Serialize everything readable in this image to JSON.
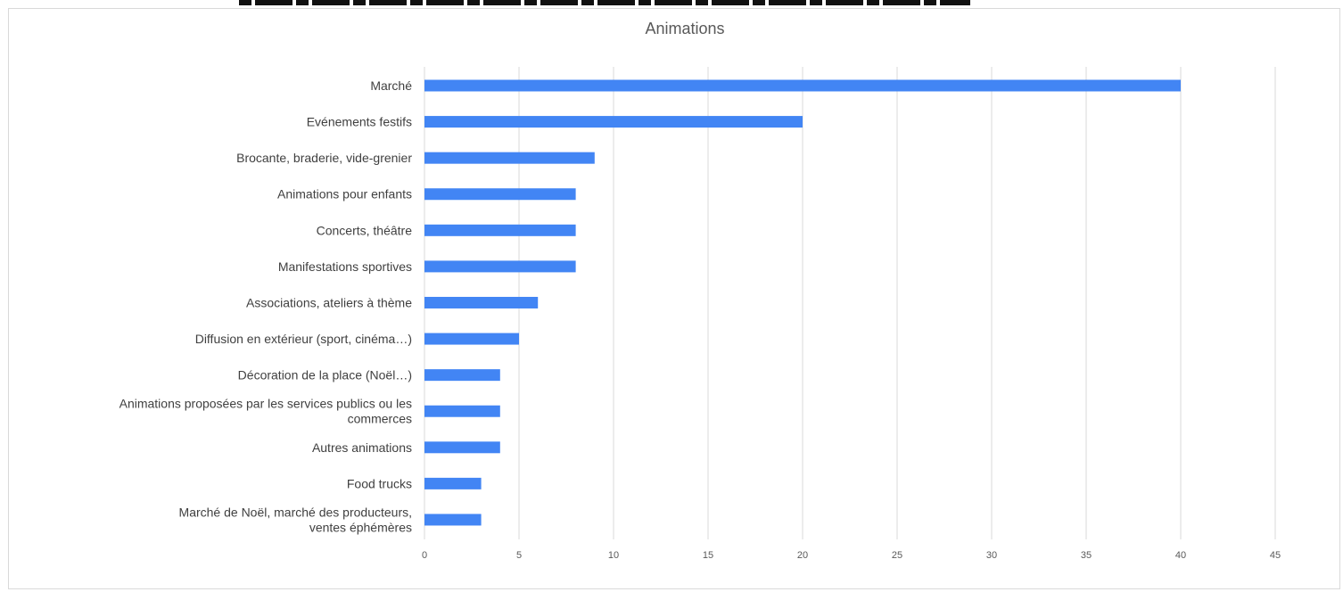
{
  "chart_data": {
    "type": "bar",
    "orientation": "horizontal",
    "title": "Animations",
    "xlabel": "",
    "ylabel": "",
    "xlim": [
      0,
      45
    ],
    "xticks": [
      0,
      5,
      10,
      15,
      20,
      25,
      30,
      35,
      40,
      45
    ],
    "grid": "vertical",
    "bar_color": "#4285f4",
    "categories": [
      [
        "Marché"
      ],
      [
        "Evénements festifs"
      ],
      [
        "Brocante, braderie, vide-grenier"
      ],
      [
        "Animations pour enfants"
      ],
      [
        "Concerts, théâtre"
      ],
      [
        "Manifestations sportives"
      ],
      [
        "Associations, ateliers à thème"
      ],
      [
        "Diffusion en extérieur (sport, cinéma…)"
      ],
      [
        "Décoration de la place (Noël…)"
      ],
      [
        "Animations proposées par les services publics ou les",
        "commerces"
      ],
      [
        "Autres animations"
      ],
      [
        "Food trucks"
      ],
      [
        "Marché de Noël, marché des producteurs,",
        "ventes éphémères"
      ]
    ],
    "values": [
      40,
      20,
      9,
      8,
      8,
      8,
      6,
      5,
      4,
      4,
      4,
      3,
      3
    ]
  }
}
